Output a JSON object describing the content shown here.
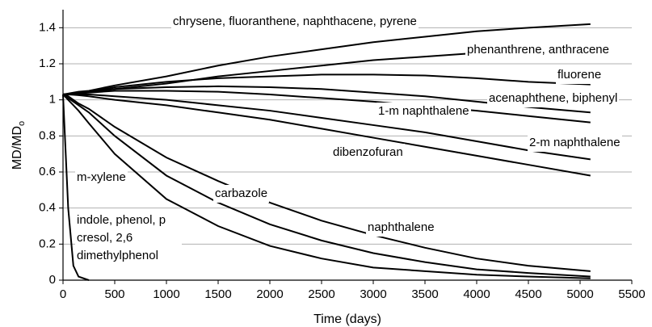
{
  "chart_data": {
    "type": "line",
    "ylabel": [
      "MD/MD",
      "o"
    ],
    "xlabel": "Time (days)",
    "x": [
      0,
      50,
      100,
      150,
      250,
      500,
      1000,
      1500,
      2000,
      2500,
      3000,
      3500,
      4000,
      4500,
      5100
    ],
    "xlim": [
      0,
      5500
    ],
    "xticks": [
      0,
      500,
      1000,
      1500,
      2000,
      2500,
      3000,
      3500,
      4000,
      4500,
      5000,
      5500
    ],
    "ylim": [
      0,
      1.5
    ],
    "yticks": [
      0,
      0.2,
      0.4,
      0.6,
      0.8,
      1,
      1.2,
      1.4
    ],
    "grid": true,
    "series": [
      {
        "name": "chrysene, fluoranthene, naphthacene, pyrene",
        "color": "#000000",
        "values": [
          1.03,
          1.035,
          1.04,
          1.045,
          1.05,
          1.08,
          1.13,
          1.19,
          1.24,
          1.28,
          1.32,
          1.35,
          1.38,
          1.4,
          1.42
        ]
      },
      {
        "name": "phenanthrene, anthracene",
        "color": "#000000",
        "values": [
          1.03,
          1.033,
          1.036,
          1.04,
          1.045,
          1.06,
          1.09,
          1.13,
          1.16,
          1.19,
          1.22,
          1.24,
          1.26,
          1.27,
          1.28
        ]
      },
      {
        "name": "fluorene",
        "color": "#000000",
        "values": [
          1.03,
          1.033,
          1.036,
          1.04,
          1.045,
          1.07,
          1.1,
          1.12,
          1.13,
          1.14,
          1.14,
          1.135,
          1.12,
          1.1,
          1.085
        ]
      },
      {
        "name": "acenaphthene, biphenyl",
        "color": "#000000",
        "values": [
          1.03,
          1.032,
          1.035,
          1.038,
          1.042,
          1.06,
          1.07,
          1.075,
          1.07,
          1.06,
          1.04,
          1.02,
          0.99,
          0.96,
          0.93
        ]
      },
      {
        "name": "1-m naphthalene",
        "color": "#000000",
        "values": [
          1.03,
          1.032,
          1.034,
          1.036,
          1.04,
          1.05,
          1.05,
          1.045,
          1.03,
          1.01,
          0.99,
          0.965,
          0.94,
          0.91,
          0.875
        ]
      },
      {
        "name": "2-m naphthalene",
        "color": "#000000",
        "values": [
          1.03,
          1.03,
          1.03,
          1.03,
          1.03,
          1.02,
          1.0,
          0.97,
          0.94,
          0.9,
          0.86,
          0.82,
          0.77,
          0.72,
          0.67
        ]
      },
      {
        "name": "dibenzofuran",
        "color": "#000000",
        "values": [
          1.03,
          1.03,
          1.028,
          1.026,
          1.02,
          1.0,
          0.97,
          0.93,
          0.89,
          0.84,
          0.79,
          0.74,
          0.69,
          0.64,
          0.58
        ]
      },
      {
        "name": "carbazole",
        "color": "#000000",
        "values": [
          1.03,
          1.02,
          1.0,
          0.98,
          0.95,
          0.85,
          0.68,
          0.55,
          0.43,
          0.33,
          0.25,
          0.18,
          0.12,
          0.08,
          0.05
        ]
      },
      {
        "name": "naphthalene",
        "color": "#000000",
        "values": [
          1.03,
          1.01,
          0.99,
          0.97,
          0.93,
          0.8,
          0.58,
          0.43,
          0.31,
          0.22,
          0.15,
          0.1,
          0.06,
          0.04,
          0.02
        ]
      },
      {
        "name": "m-xylene",
        "color": "#000000",
        "values": [
          1.03,
          1.0,
          0.97,
          0.94,
          0.87,
          0.7,
          0.45,
          0.3,
          0.19,
          0.12,
          0.07,
          0.05,
          0.03,
          0.02,
          0.01
        ]
      },
      {
        "name": "indole, phenol, p cresol, 2,6 dimethylphenol",
        "color": "#000000",
        "values": [
          1.03,
          0.4,
          0.08,
          0.02,
          0,
          null,
          null,
          null,
          null,
          null,
          null,
          null,
          null,
          null,
          null
        ]
      }
    ]
  }
}
